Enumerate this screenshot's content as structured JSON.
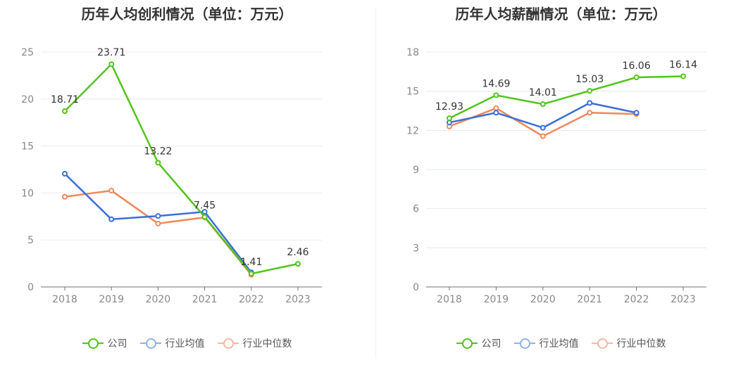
{
  "chart_data": [
    {
      "type": "line",
      "title": "历年人均创利情况（单位：万元）",
      "categories": [
        "2018",
        "2019",
        "2020",
        "2021",
        "2022",
        "2023"
      ],
      "ylim": [
        0,
        25
      ],
      "yticks": [
        0,
        5,
        10,
        15,
        20,
        25
      ],
      "grid": true,
      "legend_position": "bottom",
      "series": [
        {
          "name": "公司",
          "color": "#52c41a",
          "values": [
            18.71,
            23.71,
            13.22,
            7.45,
            1.41,
            2.46
          ],
          "labels": [
            "18.71",
            "23.71",
            "13.22",
            "7.45",
            "1.41",
            "2.46"
          ]
        },
        {
          "name": "行业均值",
          "color": "#3a6fd8",
          "values": [
            12.05,
            7.2,
            7.55,
            8.0,
            1.55,
            null
          ]
        },
        {
          "name": "行业中位数",
          "color": "#f08858",
          "values": [
            9.6,
            10.25,
            6.75,
            7.4,
            1.3,
            null
          ]
        }
      ]
    },
    {
      "type": "line",
      "title": "历年人均薪酬情况（单位：万元）",
      "categories": [
        "2018",
        "2019",
        "2020",
        "2021",
        "2022",
        "2023"
      ],
      "ylim": [
        0,
        18
      ],
      "yticks": [
        0,
        3,
        6,
        9,
        12,
        15,
        18
      ],
      "grid": true,
      "legend_position": "bottom",
      "series": [
        {
          "name": "公司",
          "color": "#52c41a",
          "values": [
            12.93,
            14.69,
            14.01,
            15.03,
            16.06,
            16.14
          ],
          "labels": [
            "12.93",
            "14.69",
            "14.01",
            "15.03",
            "16.06",
            "16.14"
          ]
        },
        {
          "name": "行业均值",
          "color": "#3a6fd8",
          "values": [
            12.6,
            13.35,
            12.2,
            14.1,
            13.35,
            null
          ]
        },
        {
          "name": "行业中位数",
          "color": "#f08858",
          "values": [
            12.3,
            13.7,
            11.55,
            13.35,
            13.25,
            null
          ]
        }
      ]
    }
  ],
  "legend": [
    {
      "label": "公司",
      "color": "#52c41a"
    },
    {
      "label": "行业均值",
      "color": "#8fb0ea"
    },
    {
      "label": "行业中位数",
      "color": "#f8b89c"
    }
  ]
}
